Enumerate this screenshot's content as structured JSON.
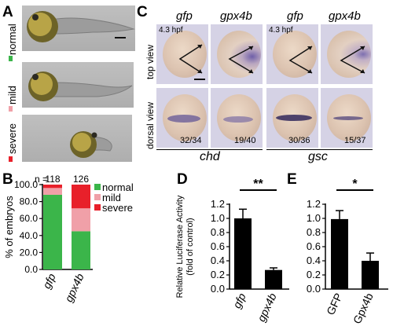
{
  "panelA": {
    "letter": "A",
    "rows": [
      {
        "label": "normal",
        "color": "#3bb54a"
      },
      {
        "label": "mild",
        "color": "#f0a0a8"
      },
      {
        "label": "severe",
        "color": "#e8202a"
      }
    ]
  },
  "panelC": {
    "letter": "C",
    "headers": [
      "gfp",
      "gpx4b",
      "gfp",
      "gpx4b"
    ],
    "hpf_label": "4.3 hpf",
    "row_labels": [
      "top view",
      "dorsal view"
    ],
    "ratios": [
      "32/34",
      "19/40",
      "30/36",
      "15/37"
    ],
    "genes": [
      "chd",
      "gsc"
    ]
  },
  "panelB": {
    "letter": "B",
    "chart_data": {
      "type": "bar",
      "stacked": true,
      "categories": [
        "gfp",
        "gpx4b"
      ],
      "n_prefix": "n =",
      "n_values": [
        "118",
        "126"
      ],
      "series": [
        {
          "name": "normal",
          "color": "#3bb54a",
          "values": [
            88,
            45
          ]
        },
        {
          "name": "mild",
          "color": "#f0a0a8",
          "values": [
            8,
            27
          ]
        },
        {
          "name": "severe",
          "color": "#e8202a",
          "values": [
            4,
            28
          ]
        }
      ],
      "ylabel": "% of embryos",
      "ylim": [
        0,
        100
      ],
      "yticks": [
        "0.0",
        "20.0",
        "40.0",
        "60.0",
        "80.0",
        "100.0"
      ],
      "legend_position": "right"
    }
  },
  "panelD": {
    "letter": "D",
    "chart_data": {
      "type": "bar",
      "categories": [
        "gfp",
        "gpx4b"
      ],
      "values": [
        1.0,
        0.27
      ],
      "errors": [
        0.13,
        0.03
      ],
      "ylabel_lines": [
        "Relative Luciferase Activity",
        "(fold of control)"
      ],
      "ylim": [
        0,
        1.2
      ],
      "yticks": [
        "0.0",
        "0.2",
        "0.4",
        "0.6",
        "0.8",
        "1.0",
        "1.2"
      ],
      "significance": "**",
      "bar_color": "#000000"
    }
  },
  "panelE": {
    "letter": "E",
    "chart_data": {
      "type": "bar",
      "categories": [
        "GFP",
        "Gpx4b"
      ],
      "values": [
        0.99,
        0.4
      ],
      "errors": [
        0.12,
        0.11
      ],
      "ylim": [
        0,
        1.2
      ],
      "yticks": [
        "0.0",
        "0.2",
        "0.4",
        "0.6",
        "0.8",
        "1.0",
        "1.2"
      ],
      "significance": "*",
      "bar_color": "#000000"
    }
  }
}
